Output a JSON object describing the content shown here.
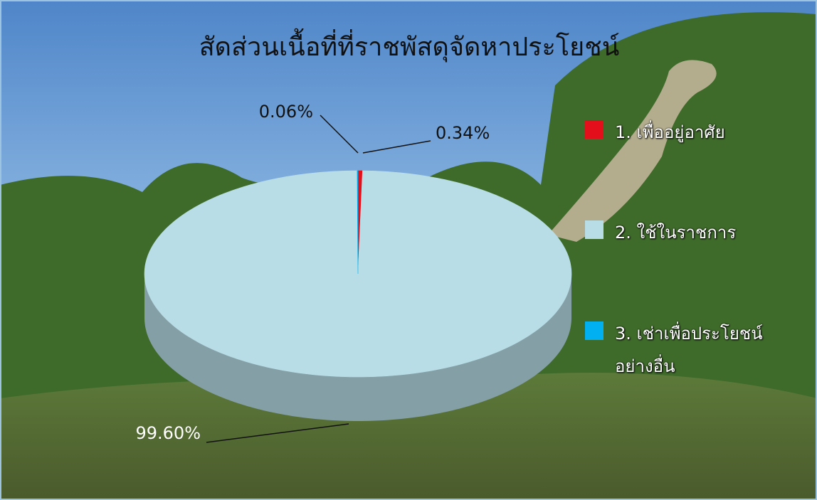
{
  "chart_data": {
    "type": "pie",
    "title": "สัดส่วนเนื้อที่ที่ราชพัสดุจัดหาประโยชน์",
    "categories": [
      "1. เพื่ออยู่อาศัย",
      "2. ใช้ในราชการ",
      "3. เช่าเพื่อประโยชน์อย่างอื่น"
    ],
    "values": [
      0.34,
      99.6,
      0.06
    ],
    "value_labels": [
      "0.34%",
      "99.60%",
      "0.06%"
    ],
    "colors": [
      "#e3101b",
      "#b8dde6",
      "#00b0f0"
    ],
    "legend": "right",
    "three_d": true
  }
}
